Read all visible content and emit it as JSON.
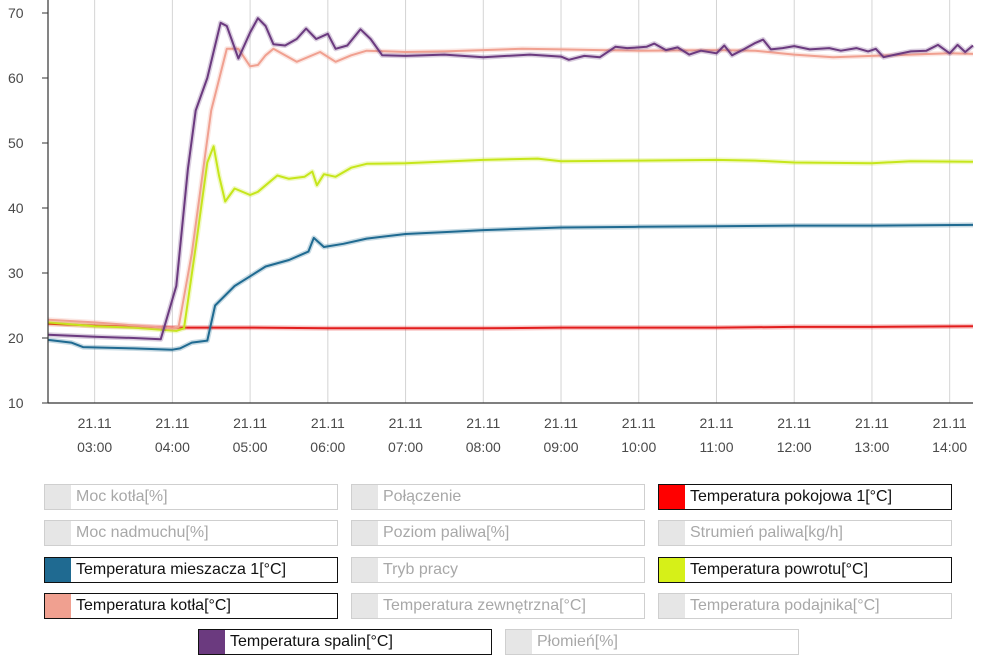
{
  "chart_data": {
    "type": "line",
    "ylim": [
      10,
      72
    ],
    "yticks": [
      10,
      20,
      30,
      40,
      50,
      60,
      70
    ],
    "xlim": [
      2.4,
      14.3
    ],
    "xticks": [
      {
        "x": 3,
        "date": "21.11",
        "time": "03:00"
      },
      {
        "x": 4,
        "date": "21.11",
        "time": "04:00"
      },
      {
        "x": 5,
        "date": "21.11",
        "time": "05:00"
      },
      {
        "x": 6,
        "date": "21.11",
        "time": "06:00"
      },
      {
        "x": 7,
        "date": "21.11",
        "time": "07:00"
      },
      {
        "x": 8,
        "date": "21.11",
        "time": "08:00"
      },
      {
        "x": 9,
        "date": "21.11",
        "time": "09:00"
      },
      {
        "x": 10,
        "date": "21.11",
        "time": "10:00"
      },
      {
        "x": 11,
        "date": "21.11",
        "time": "11:00"
      },
      {
        "x": 12,
        "date": "21.11",
        "time": "12:00"
      },
      {
        "x": 13,
        "date": "21.11",
        "time": "13:00"
      },
      {
        "x": 14,
        "date": "21.11",
        "time": "14:00"
      }
    ],
    "grid": true,
    "series": [
      {
        "name": "Temperatura pokojowa 1[°C]",
        "color": "#e21d1d",
        "points": [
          [
            2.4,
            22.2
          ],
          [
            3,
            21.9
          ],
          [
            4,
            21.6
          ],
          [
            5,
            21.6
          ],
          [
            6,
            21.5
          ],
          [
            7,
            21.5
          ],
          [
            8,
            21.5
          ],
          [
            9,
            21.6
          ],
          [
            10,
            21.6
          ],
          [
            11,
            21.6
          ],
          [
            12,
            21.7
          ],
          [
            13,
            21.7
          ],
          [
            14.3,
            21.8
          ]
        ]
      },
      {
        "name": "Temperatura mieszacza 1[°C]",
        "color": "#1f6a91",
        "points": [
          [
            2.4,
            19.7
          ],
          [
            2.7,
            19.3
          ],
          [
            2.85,
            18.6
          ],
          [
            3.5,
            18.4
          ],
          [
            4,
            18.2
          ],
          [
            4.1,
            18.4
          ],
          [
            4.25,
            19.3
          ],
          [
            4.45,
            19.6
          ],
          [
            4.55,
            25
          ],
          [
            4.8,
            28
          ],
          [
            5,
            29.5
          ],
          [
            5.2,
            31
          ],
          [
            5.5,
            32
          ],
          [
            5.75,
            33.3
          ],
          [
            5.82,
            35.4
          ],
          [
            5.95,
            34
          ],
          [
            6.2,
            34.5
          ],
          [
            6.5,
            35.3
          ],
          [
            7,
            36
          ],
          [
            7.5,
            36.3
          ],
          [
            8,
            36.6
          ],
          [
            9,
            37
          ],
          [
            10,
            37.1
          ],
          [
            11,
            37.2
          ],
          [
            12,
            37.3
          ],
          [
            13,
            37.3
          ],
          [
            14.3,
            37.4
          ]
        ]
      },
      {
        "name": "Temperatura powrotu[°C]",
        "color": "#c6e61a",
        "points": [
          [
            2.4,
            22.4
          ],
          [
            3,
            21.8
          ],
          [
            3.5,
            21.6
          ],
          [
            4.05,
            21.1
          ],
          [
            4.15,
            21.5
          ],
          [
            4.3,
            34
          ],
          [
            4.45,
            47
          ],
          [
            4.53,
            49.5
          ],
          [
            4.6,
            45
          ],
          [
            4.68,
            41
          ],
          [
            4.8,
            43
          ],
          [
            5,
            42
          ],
          [
            5.1,
            42.5
          ],
          [
            5.2,
            43.5
          ],
          [
            5.35,
            45
          ],
          [
            5.5,
            44.5
          ],
          [
            5.7,
            44.8
          ],
          [
            5.8,
            45.6
          ],
          [
            5.86,
            43.5
          ],
          [
            5.95,
            45.2
          ],
          [
            6.1,
            44.8
          ],
          [
            6.3,
            46.2
          ],
          [
            6.5,
            46.8
          ],
          [
            7,
            46.9
          ],
          [
            8,
            47.4
          ],
          [
            8.7,
            47.6
          ],
          [
            9,
            47.2
          ],
          [
            10,
            47.3
          ],
          [
            11,
            47.4
          ],
          [
            11.5,
            47.3
          ],
          [
            12,
            47.0
          ],
          [
            13,
            46.9
          ],
          [
            13.5,
            47.2
          ],
          [
            14.3,
            47.1
          ]
        ]
      },
      {
        "name": "Temperatura kotła[°C]",
        "color": "#f0a090",
        "points": [
          [
            2.4,
            22.8
          ],
          [
            3,
            22.4
          ],
          [
            4,
            21.5
          ],
          [
            4.08,
            21.7
          ],
          [
            4.25,
            33
          ],
          [
            4.5,
            55
          ],
          [
            4.7,
            64.5
          ],
          [
            4.85,
            64.5
          ],
          [
            5,
            61.8
          ],
          [
            5.1,
            62
          ],
          [
            5.2,
            63.5
          ],
          [
            5.3,
            64.5
          ],
          [
            5.6,
            62.5
          ],
          [
            5.9,
            64
          ],
          [
            6.1,
            62.5
          ],
          [
            6.3,
            63.5
          ],
          [
            6.5,
            64.2
          ],
          [
            7,
            64
          ],
          [
            7.5,
            64.1
          ],
          [
            8,
            64.3
          ],
          [
            8.5,
            64.5
          ],
          [
            9,
            64.4
          ],
          [
            9.5,
            64.3
          ],
          [
            10,
            64.2
          ],
          [
            11,
            64.3
          ],
          [
            11.5,
            64.2
          ],
          [
            12,
            63.6
          ],
          [
            12.5,
            63.2
          ],
          [
            13,
            63.4
          ],
          [
            14,
            63.8
          ],
          [
            14.3,
            63.7
          ]
        ]
      },
      {
        "name": "Temperatura spalin[°C]",
        "color": "#6b3a7f",
        "points": [
          [
            2.4,
            20.5
          ],
          [
            3,
            20.2
          ],
          [
            3.5,
            20.0
          ],
          [
            3.85,
            19.8
          ],
          [
            4.05,
            28
          ],
          [
            4.2,
            46
          ],
          [
            4.3,
            55
          ],
          [
            4.45,
            60
          ],
          [
            4.55,
            65
          ],
          [
            4.62,
            68.5
          ],
          [
            4.7,
            68
          ],
          [
            4.85,
            63
          ],
          [
            5,
            67
          ],
          [
            5.1,
            69.2
          ],
          [
            5.2,
            68
          ],
          [
            5.3,
            65.2
          ],
          [
            5.45,
            65
          ],
          [
            5.6,
            66
          ],
          [
            5.72,
            67.6
          ],
          [
            5.85,
            66
          ],
          [
            6.0,
            66.8
          ],
          [
            6.1,
            64.5
          ],
          [
            6.25,
            65
          ],
          [
            6.42,
            67.5
          ],
          [
            6.55,
            66
          ],
          [
            6.7,
            63.5
          ],
          [
            7,
            63.4
          ],
          [
            7.5,
            63.6
          ],
          [
            8,
            63.2
          ],
          [
            8.3,
            63.4
          ],
          [
            8.6,
            63.6
          ],
          [
            9,
            63.3
          ],
          [
            9.1,
            62.8
          ],
          [
            9.3,
            63.4
          ],
          [
            9.5,
            63.2
          ],
          [
            9.7,
            64.8
          ],
          [
            9.85,
            64.6
          ],
          [
            10,
            64.7
          ],
          [
            10.1,
            64.8
          ],
          [
            10.2,
            65.3
          ],
          [
            10.35,
            64.3
          ],
          [
            10.5,
            64.7
          ],
          [
            10.65,
            63.6
          ],
          [
            10.8,
            64.2
          ],
          [
            11,
            63.8
          ],
          [
            11.1,
            65
          ],
          [
            11.2,
            63.5
          ],
          [
            11.35,
            64.4
          ],
          [
            11.5,
            65.4
          ],
          [
            11.6,
            65.9
          ],
          [
            11.7,
            64.4
          ],
          [
            11.85,
            64.6
          ],
          [
            12,
            64.9
          ],
          [
            12.2,
            64.4
          ],
          [
            12.45,
            64.6
          ],
          [
            12.6,
            64.2
          ],
          [
            12.8,
            64.6
          ],
          [
            12.95,
            64.1
          ],
          [
            13.05,
            64.5
          ],
          [
            13.15,
            63.2
          ],
          [
            13.3,
            63.6
          ],
          [
            13.5,
            64.1
          ],
          [
            13.7,
            64.2
          ],
          [
            13.85,
            65.1
          ],
          [
            14,
            63.8
          ],
          [
            14.1,
            65.1
          ],
          [
            14.2,
            64
          ],
          [
            14.3,
            65
          ]
        ]
      }
    ]
  },
  "legend": [
    {
      "label": "Moc kotła[%]",
      "color": "#e6e6e6",
      "active": false
    },
    {
      "label": "Połączenie",
      "color": "#e6e6e6",
      "active": false
    },
    {
      "label": "Temperatura pokojowa 1[°C]",
      "color": "#ff0000",
      "active": true
    },
    {
      "label": "Moc nadmuchu[%]",
      "color": "#e6e6e6",
      "active": false
    },
    {
      "label": "Poziom paliwa[%]",
      "color": "#e6e6e6",
      "active": false
    },
    {
      "label": "Strumień paliwa[kg/h]",
      "color": "#e6e6e6",
      "active": false
    },
    {
      "label": "Temperatura mieszacza 1[°C]",
      "color": "#1f6a91",
      "active": true
    },
    {
      "label": "Tryb pracy",
      "color": "#e6e6e6",
      "active": false
    },
    {
      "label": "Temperatura powrotu[°C]",
      "color": "#d6f018",
      "active": true
    },
    {
      "label": "Temperatura kotła[°C]",
      "color": "#f0a090",
      "active": true
    },
    {
      "label": "Temperatura zewnętrzna[°C]",
      "color": "#e6e6e6",
      "active": false
    },
    {
      "label": "Temperatura podajnika[°C]",
      "color": "#e6e6e6",
      "active": false
    },
    {
      "label": "Temperatura spalin[°C]",
      "color": "#6b3a7f",
      "active": true
    },
    {
      "label": "Płomień[%]",
      "color": "#e6e6e6",
      "active": false
    }
  ]
}
